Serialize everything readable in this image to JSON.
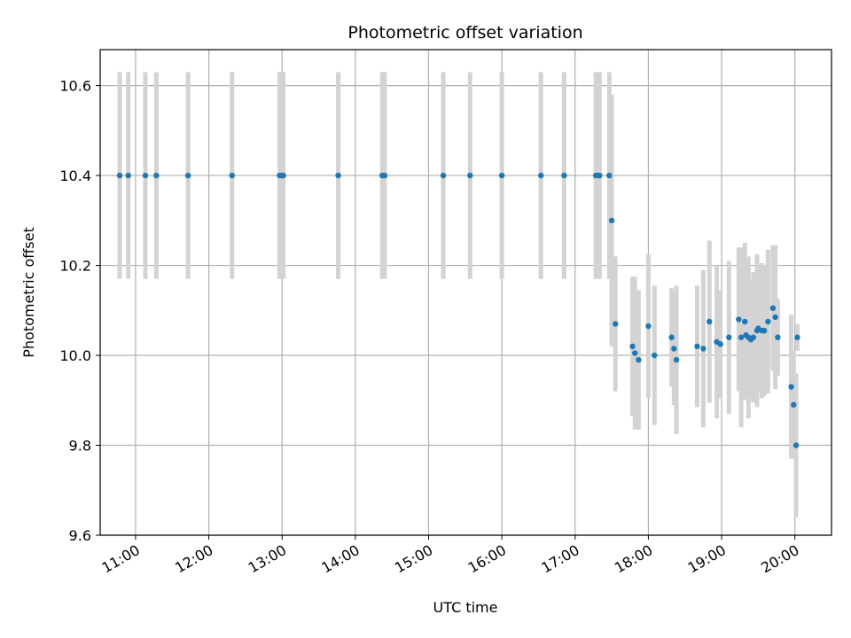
{
  "chart_data": {
    "type": "scatter",
    "title": "Photometric offset variation",
    "xlabel": "UTC time",
    "ylabel": "Photometric offset",
    "xlim": [
      "10:31",
      "20:30"
    ],
    "ylim": [
      9.6,
      10.68
    ],
    "grid": true,
    "x_ticks": [
      "11:00",
      "12:00",
      "13:00",
      "14:00",
      "15:00",
      "16:00",
      "17:00",
      "18:00",
      "19:00",
      "20:00"
    ],
    "y_ticks": [
      "9.6",
      "9.8",
      "10.0",
      "10.2",
      "10.4",
      "10.6"
    ],
    "point_color": "#1f77b4",
    "errorbar_color": "#d3d3d3",
    "series": [
      {
        "time": [
          "10:47",
          "10:54",
          "11:08",
          "11:17",
          "11:43",
          "12:19",
          "12:58",
          "13:00",
          "13:01",
          "13:46",
          "14:22",
          "14:24",
          "15:12",
          "15:34",
          "16:00",
          "16:32",
          "16:51",
          "17:17",
          "17:19",
          "17:20",
          "17:28",
          "17:30",
          "17:33",
          "17:47",
          "17:49",
          "17:52",
          "18:00",
          "18:05",
          "18:19",
          "18:21",
          "18:23",
          "18:40",
          "18:45",
          "18:50",
          "18:56",
          "18:59",
          "19:06",
          "19:14",
          "19:16",
          "19:19",
          "19:20",
          "19:22",
          "19:24",
          "19:26",
          "19:29",
          "19:30",
          "19:33",
          "19:35",
          "19:38",
          "19:42",
          "19:44",
          "19:46",
          "19:57",
          "19:59",
          "20:01",
          "20:02"
        ],
        "y": [
          10.4,
          10.4,
          10.4,
          10.4,
          10.4,
          10.4,
          10.4,
          10.4,
          10.4,
          10.4,
          10.4,
          10.4,
          10.4,
          10.4,
          10.4,
          10.4,
          10.4,
          10.4,
          10.4,
          10.4,
          10.4,
          10.3,
          10.07,
          10.02,
          10.005,
          9.99,
          10.065,
          10.0,
          10.04,
          10.015,
          9.99,
          10.02,
          10.015,
          10.075,
          10.03,
          10.025,
          10.04,
          10.08,
          10.04,
          10.075,
          10.045,
          10.04,
          10.035,
          10.04,
          10.055,
          10.06,
          10.055,
          10.055,
          10.075,
          10.105,
          10.085,
          10.04,
          9.93,
          9.89,
          9.8,
          10.04
        ],
        "yerr": [
          0.23,
          0.23,
          0.23,
          0.23,
          0.23,
          0.23,
          0.23,
          0.23,
          0.23,
          0.23,
          0.23,
          0.23,
          0.23,
          0.23,
          0.23,
          0.23,
          0.23,
          0.23,
          0.23,
          0.23,
          0.23,
          0.28,
          0.15,
          0.155,
          0.17,
          0.155,
          0.16,
          0.155,
          0.11,
          0.125,
          0.165,
          0.135,
          0.175,
          0.18,
          0.17,
          0.12,
          0.17,
          0.16,
          0.2,
          0.175,
          0.14,
          0.18,
          0.13,
          0.145,
          0.17,
          0.14,
          0.15,
          0.145,
          0.16,
          0.14,
          0.16,
          0.085,
          0.16,
          0.12,
          0.16,
          0.03
        ]
      }
    ]
  }
}
